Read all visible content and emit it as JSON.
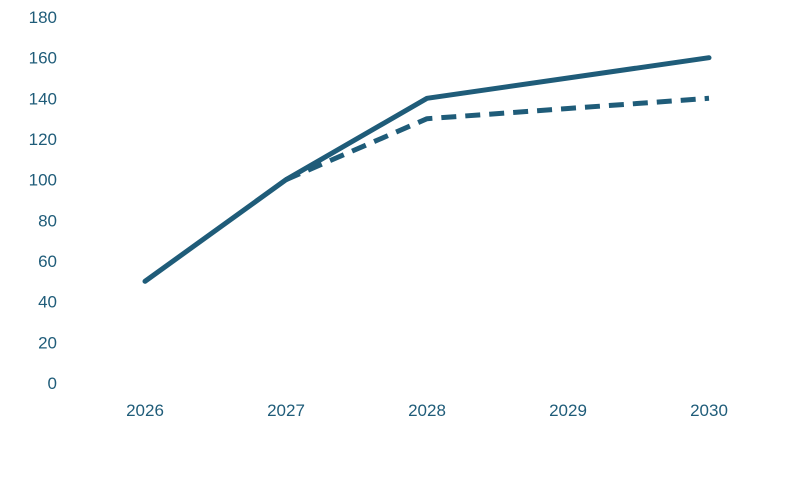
{
  "chart_data": {
    "type": "line",
    "x": [
      "2026",
      "2027",
      "2028",
      "2029",
      "2030"
    ],
    "series": [
      {
        "values": [
          50,
          100,
          140,
          150,
          160
        ],
        "style": "solid"
      },
      {
        "values": [
          null,
          100,
          130,
          135,
          140
        ],
        "style": "dashed"
      }
    ],
    "ylim": [
      0,
      180
    ],
    "yticks": [
      0,
      20,
      40,
      60,
      80,
      100,
      120,
      140,
      160,
      180
    ],
    "grid": false,
    "legend": "none"
  },
  "colors": {
    "line": "#1F5C79",
    "tick_label": "#1F5C79",
    "background": "#FFFFFF"
  }
}
